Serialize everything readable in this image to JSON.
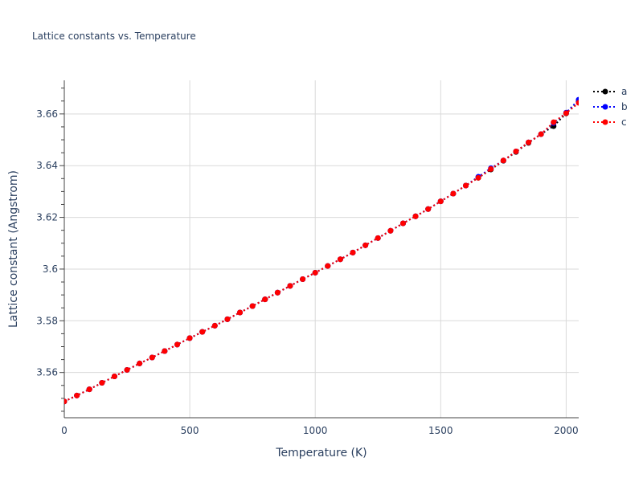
{
  "chart_data": {
    "type": "line",
    "title": "Lattice constants vs. Temperature",
    "xlabel": "Temperature (K)",
    "ylabel": "Lattice constant (Angstrom)",
    "xlim": [
      0,
      2050
    ],
    "ylim": [
      3.5425,
      3.673
    ],
    "x_ticks": [
      0,
      500,
      1000,
      1500,
      2000
    ],
    "x_tick_labels": [
      "0",
      "500",
      "1000",
      "1500",
      "2000"
    ],
    "y_ticks": [
      3.56,
      3.58,
      3.6,
      3.62,
      3.64,
      3.66
    ],
    "y_tick_labels": [
      "3.56",
      "3.58",
      "3.6",
      "3.62",
      "3.64",
      "3.66"
    ],
    "grid": true,
    "legend_position": "top-right",
    "x": [
      0,
      50,
      100,
      150,
      200,
      250,
      300,
      350,
      400,
      450,
      500,
      550,
      600,
      650,
      700,
      750,
      800,
      850,
      900,
      950,
      1000,
      1050,
      1100,
      1150,
      1200,
      1250,
      1300,
      1350,
      1400,
      1450,
      1500,
      1550,
      1600,
      1650,
      1700,
      1750,
      1800,
      1850,
      1900,
      1950,
      2000,
      2050
    ],
    "series": [
      {
        "name": "a",
        "color": "#000000",
        "values": [
          3.5488,
          3.5511,
          3.5535,
          3.556,
          3.5585,
          3.561,
          3.5635,
          3.5658,
          3.5683,
          3.5708,
          3.5733,
          3.5757,
          3.5781,
          3.5806,
          3.5832,
          3.5857,
          3.5883,
          3.5909,
          3.5935,
          3.5961,
          3.5986,
          3.6012,
          3.6038,
          3.6064,
          3.6092,
          3.612,
          3.6148,
          3.6177,
          3.6204,
          3.6232,
          3.6262,
          3.6292,
          3.6323,
          3.6353,
          3.6385,
          3.6419,
          3.6453,
          3.6488,
          3.6522,
          3.6553,
          3.6602,
          3.6648
        ]
      },
      {
        "name": "b",
        "color": "#0000ff",
        "values": [
          3.5488,
          3.5511,
          3.5535,
          3.556,
          3.5585,
          3.561,
          3.5635,
          3.5658,
          3.5683,
          3.5708,
          3.5733,
          3.5757,
          3.5781,
          3.5806,
          3.5832,
          3.5857,
          3.5883,
          3.5909,
          3.5935,
          3.5961,
          3.5986,
          3.6012,
          3.6038,
          3.6064,
          3.6092,
          3.612,
          3.6148,
          3.6177,
          3.6204,
          3.6232,
          3.6262,
          3.6292,
          3.6323,
          3.6357,
          3.639,
          3.642,
          3.6455,
          3.649,
          3.6522,
          3.6565,
          3.6605,
          3.6655
        ]
      },
      {
        "name": "c",
        "color": "#ff0000",
        "values": [
          3.5488,
          3.5511,
          3.5535,
          3.556,
          3.5585,
          3.561,
          3.5635,
          3.5658,
          3.5683,
          3.5708,
          3.5733,
          3.5757,
          3.5781,
          3.5806,
          3.5832,
          3.5857,
          3.5883,
          3.5909,
          3.5935,
          3.5961,
          3.5986,
          3.6012,
          3.6038,
          3.6064,
          3.6092,
          3.612,
          3.6148,
          3.6177,
          3.6204,
          3.6232,
          3.6262,
          3.6292,
          3.6323,
          3.6353,
          3.6387,
          3.642,
          3.6455,
          3.649,
          3.6522,
          3.6568,
          3.6603,
          3.6643
        ]
      }
    ]
  }
}
